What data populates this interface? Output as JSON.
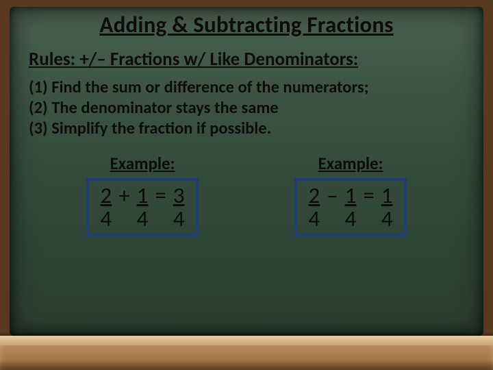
{
  "title": "Adding & Subtracting Fractions",
  "rules_heading": "Rules: +/– Fractions w/ Like Denominators:",
  "rules": {
    "r1": "(1) Find the sum or difference of the numerators;",
    "r2": "(2) The denominator stays the same",
    "r3": "(3) Simplify the fraction if possible."
  },
  "example_label": "Example:",
  "colors": {
    "box_border": "#1f3e78",
    "text_color": "#0c0c0c"
  },
  "examples": {
    "left": {
      "a_num": "2",
      "a_den": "4",
      "op1": "+",
      "b_num": "1",
      "b_den": "4",
      "op2": "=",
      "c_num": "3",
      "c_den": "4"
    },
    "right": {
      "a_num": "2",
      "a_den": "4",
      "op1": "–",
      "b_num": "1",
      "b_den": "4",
      "op2": "=",
      "c_num": "1",
      "c_den": "4"
    }
  }
}
